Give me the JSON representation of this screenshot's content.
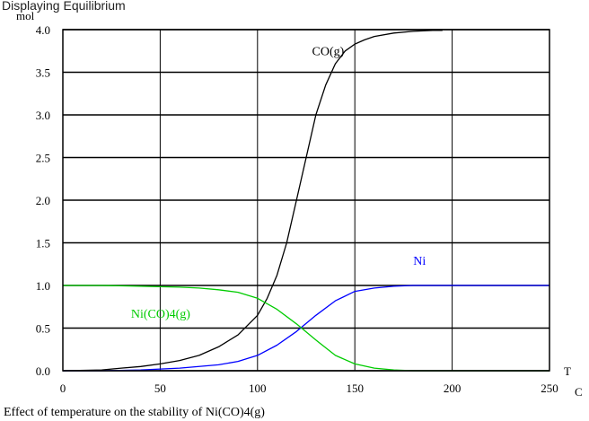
{
  "page_header": "Displaying Equilibrium",
  "chart_data": {
    "type": "line",
    "title": "",
    "caption": "Effect of temperature on the stability of Ni(CO)4(g)",
    "ylabel": "mol",
    "xlabel": "T",
    "x_unit": "C",
    "xlim": [
      0,
      250
    ],
    "ylim": [
      0,
      4.0
    ],
    "x_ticks": [
      "0",
      "50",
      "100",
      "150",
      "200",
      "250"
    ],
    "y_ticks": [
      "0.0",
      "0.5",
      "1.0",
      "1.5",
      "2.0",
      "2.5",
      "3.0",
      "3.5",
      "4.0"
    ],
    "grid": true,
    "series": [
      {
        "name": "CO(g)",
        "color": "#000000",
        "x": [
          0,
          20,
          30,
          40,
          50,
          60,
          70,
          80,
          90,
          100,
          105,
          110,
          115,
          120,
          125,
          130,
          135,
          140,
          145,
          150,
          155,
          160,
          170,
          180,
          190,
          195
        ],
        "y": [
          0.0,
          0.01,
          0.03,
          0.05,
          0.08,
          0.12,
          0.18,
          0.28,
          0.42,
          0.65,
          0.85,
          1.12,
          1.5,
          2.0,
          2.5,
          3.0,
          3.35,
          3.6,
          3.75,
          3.83,
          3.88,
          3.92,
          3.96,
          3.98,
          3.99,
          3.99
        ]
      },
      {
        "name": "Ni",
        "color": "#0000ff",
        "x": [
          0,
          20,
          40,
          60,
          80,
          90,
          100,
          110,
          120,
          130,
          140,
          150,
          160,
          170,
          180,
          200,
          220,
          250
        ],
        "y": [
          0.0,
          0.0,
          0.01,
          0.03,
          0.07,
          0.11,
          0.18,
          0.3,
          0.46,
          0.65,
          0.82,
          0.93,
          0.97,
          0.99,
          1.0,
          1.0,
          1.0,
          1.0
        ]
      },
      {
        "name": "Ni(CO)4(g)",
        "color": "#00cc00",
        "x": [
          0,
          20,
          40,
          60,
          70,
          80,
          90,
          100,
          110,
          120,
          130,
          140,
          150,
          160,
          170,
          180,
          200,
          220,
          250
        ],
        "y": [
          1.0,
          1.0,
          0.99,
          0.98,
          0.97,
          0.95,
          0.92,
          0.85,
          0.72,
          0.55,
          0.36,
          0.18,
          0.08,
          0.03,
          0.01,
          0.0,
          0.0,
          0.0,
          0.0
        ]
      }
    ]
  }
}
